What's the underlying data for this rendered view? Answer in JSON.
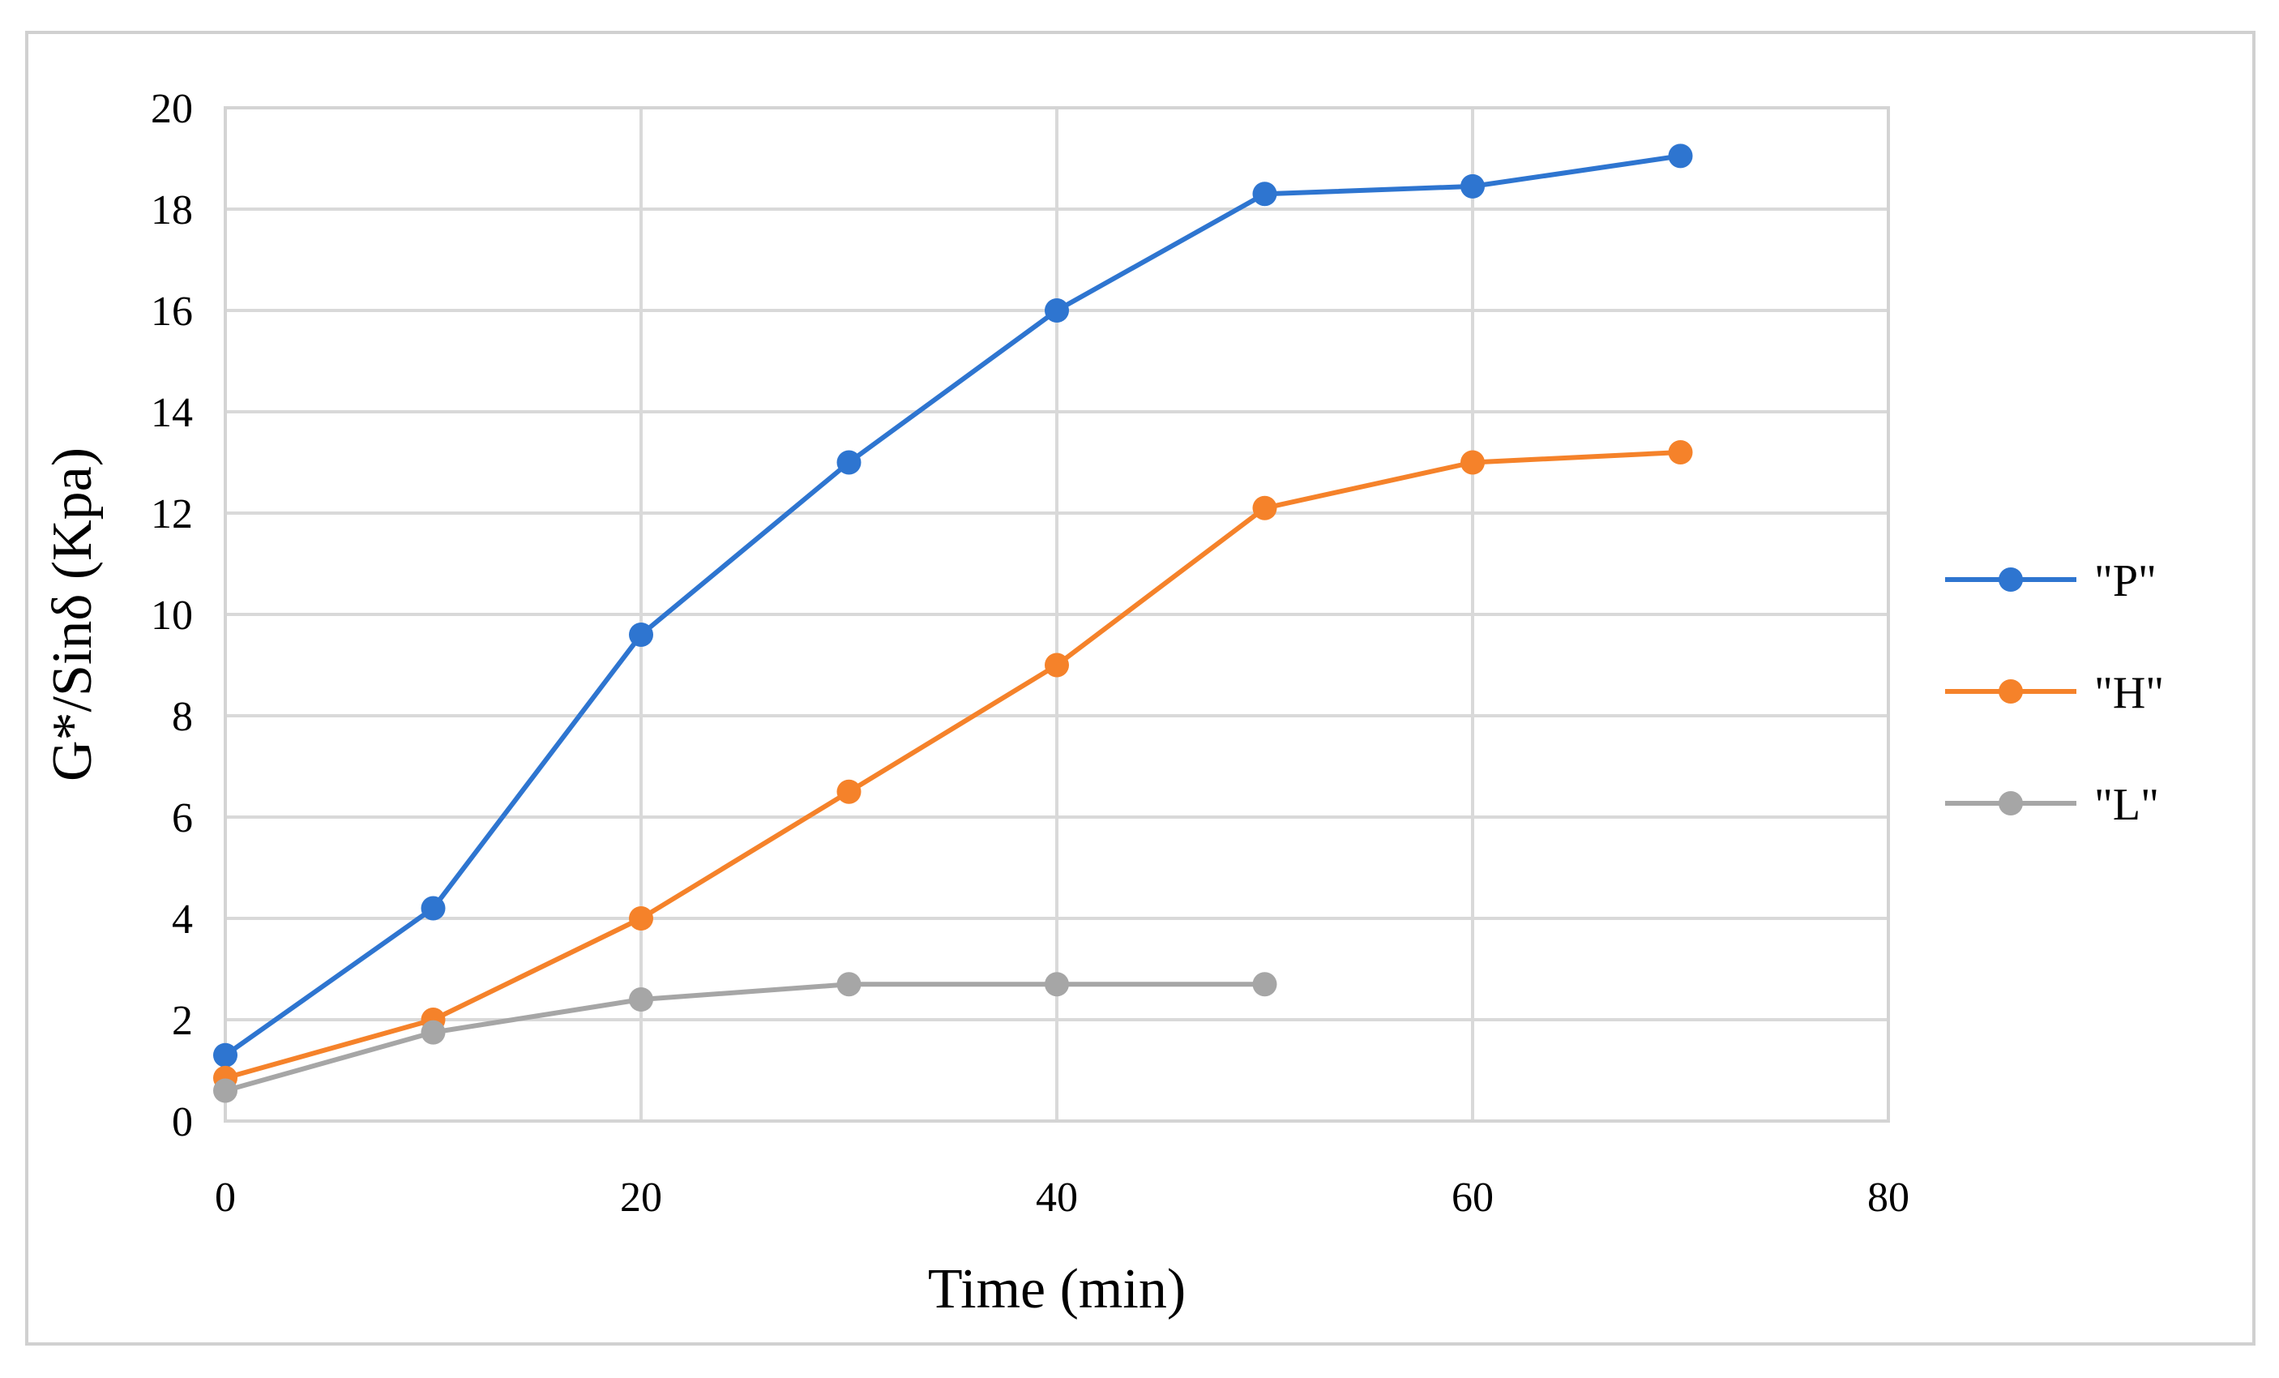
{
  "chart_data": {
    "type": "line",
    "title": "",
    "xlabel": "Time (min)",
    "ylabel": "G*/Sinδ (Kpa)",
    "xlim": [
      0,
      80
    ],
    "ylim": [
      0,
      20
    ],
    "x_ticks": [
      0,
      20,
      40,
      60,
      80
    ],
    "y_ticks": [
      0,
      2,
      4,
      6,
      8,
      10,
      12,
      14,
      16,
      18,
      20
    ],
    "grid": true,
    "legend_position": "right",
    "series": [
      {
        "name": "\"P\"",
        "color": "#2e75d0",
        "x": [
          0,
          10,
          20,
          30,
          40,
          50,
          60,
          70
        ],
        "y": [
          1.3,
          4.2,
          9.6,
          13.0,
          16.0,
          18.3,
          18.45,
          19.05
        ]
      },
      {
        "name": "\"H\"",
        "color": "#f5822a",
        "x": [
          0,
          10,
          20,
          30,
          40,
          50,
          60,
          70
        ],
        "y": [
          0.85,
          2.0,
          4.0,
          6.5,
          9.0,
          12.1,
          13.0,
          13.2
        ]
      },
      {
        "name": "\"L\"",
        "color": "#a6a6a6",
        "x": [
          0,
          10,
          20,
          30,
          40,
          50
        ],
        "y": [
          0.6,
          1.75,
          2.4,
          2.7,
          2.7,
          2.7
        ]
      }
    ]
  }
}
